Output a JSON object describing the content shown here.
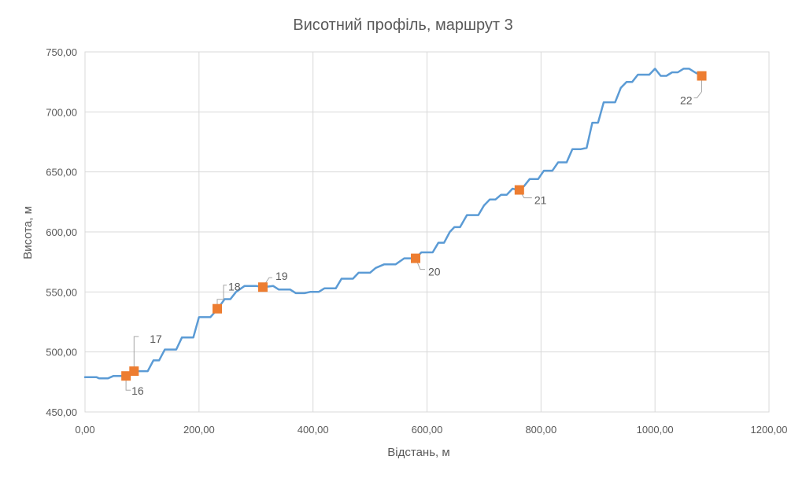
{
  "chart_data": {
    "type": "line",
    "title": "Висотний профіль, маршрут 3",
    "xlabel": "Відстань, м",
    "ylabel": "Висота, м",
    "xlim": [
      0,
      1200
    ],
    "ylim": [
      450,
      750
    ],
    "x_ticks": [
      0,
      200,
      400,
      600,
      800,
      1000,
      1200
    ],
    "x_tick_labels": [
      "0,00",
      "200,00",
      "400,00",
      "600,00",
      "800,00",
      "1000,00",
      "1200,00"
    ],
    "y_ticks": [
      450,
      500,
      550,
      600,
      650,
      700,
      750
    ],
    "y_tick_labels": [
      "450,00",
      "500,00",
      "550,00",
      "600,00",
      "650,00",
      "700,00",
      "750,00"
    ],
    "grid": true,
    "legend": "none",
    "colors": {
      "line": "#5b9bd5",
      "marker": "#ed7d31",
      "grid": "#d9d9d9",
      "text": "#595959",
      "leader": "#a6a6a6"
    },
    "series": [
      {
        "values": [
          [
            0,
            479
          ],
          [
            20,
            479
          ],
          [
            25,
            478
          ],
          [
            40,
            478
          ],
          [
            50,
            480
          ],
          [
            70,
            480
          ],
          [
            78,
            482
          ],
          [
            85,
            484
          ],
          [
            110,
            484
          ],
          [
            120,
            493
          ],
          [
            130,
            493
          ],
          [
            140,
            502
          ],
          [
            160,
            502
          ],
          [
            170,
            512
          ],
          [
            190,
            512
          ],
          [
            200,
            529
          ],
          [
            220,
            529
          ],
          [
            233,
            536
          ],
          [
            245,
            544
          ],
          [
            255,
            544
          ],
          [
            265,
            550
          ],
          [
            280,
            555
          ],
          [
            300,
            555
          ],
          [
            312,
            554
          ],
          [
            330,
            555
          ],
          [
            340,
            552
          ],
          [
            360,
            552
          ],
          [
            370,
            549
          ],
          [
            385,
            549
          ],
          [
            395,
            550
          ],
          [
            410,
            550
          ],
          [
            420,
            553
          ],
          [
            440,
            553
          ],
          [
            450,
            561
          ],
          [
            470,
            561
          ],
          [
            480,
            566
          ],
          [
            500,
            566
          ],
          [
            510,
            570
          ],
          [
            525,
            573
          ],
          [
            545,
            573
          ],
          [
            560,
            578
          ],
          [
            580,
            578
          ],
          [
            590,
            583
          ],
          [
            610,
            583
          ],
          [
            620,
            591
          ],
          [
            630,
            591
          ],
          [
            640,
            600
          ],
          [
            648,
            604
          ],
          [
            658,
            604
          ],
          [
            670,
            614
          ],
          [
            690,
            614
          ],
          [
            700,
            622
          ],
          [
            710,
            627
          ],
          [
            720,
            627
          ],
          [
            730,
            631
          ],
          [
            740,
            631
          ],
          [
            750,
            636
          ],
          [
            760,
            635
          ],
          [
            770,
            638
          ],
          [
            780,
            644
          ],
          [
            795,
            644
          ],
          [
            805,
            651
          ],
          [
            820,
            651
          ],
          [
            830,
            658
          ],
          [
            845,
            658
          ],
          [
            855,
            669
          ],
          [
            870,
            669
          ],
          [
            880,
            670
          ],
          [
            890,
            691
          ],
          [
            900,
            691
          ],
          [
            910,
            708
          ],
          [
            930,
            708
          ],
          [
            940,
            720
          ],
          [
            950,
            725
          ],
          [
            960,
            725
          ],
          [
            970,
            731
          ],
          [
            990,
            731
          ],
          [
            1000,
            736
          ],
          [
            1010,
            730
          ],
          [
            1020,
            730
          ],
          [
            1030,
            733
          ],
          [
            1040,
            733
          ],
          [
            1050,
            736
          ],
          [
            1060,
            736
          ],
          [
            1070,
            733
          ],
          [
            1082,
            730
          ]
        ]
      }
    ],
    "markers": [
      {
        "label": "16",
        "x": 72,
        "y": 480
      },
      {
        "label": "17",
        "x": 86,
        "y": 484
      },
      {
        "label": "18",
        "x": 232,
        "y": 536
      },
      {
        "label": "19",
        "x": 312,
        "y": 554
      },
      {
        "label": "20",
        "x": 580,
        "y": 578
      },
      {
        "label": "21",
        "x": 762,
        "y": 635
      },
      {
        "label": "22",
        "x": 1082,
        "y": 730
      }
    ]
  }
}
